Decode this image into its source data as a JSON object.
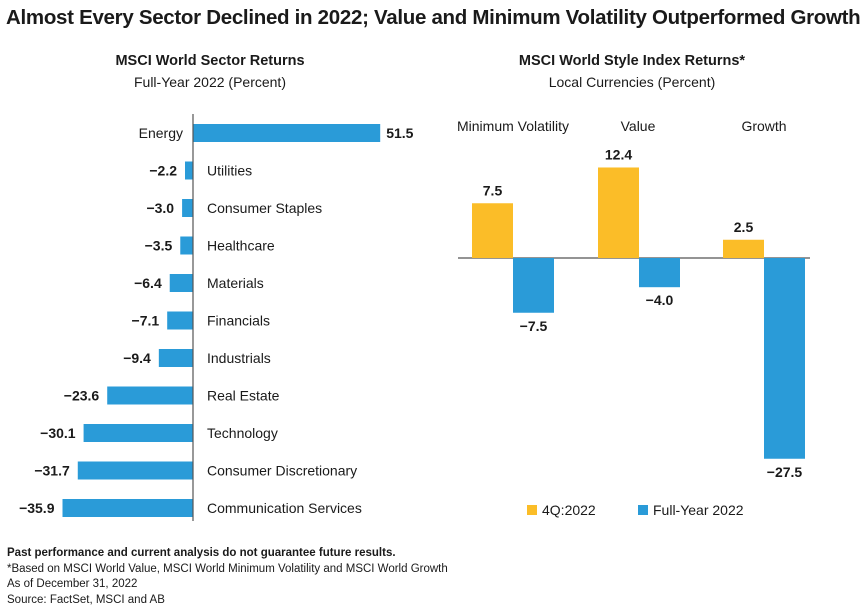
{
  "title": "Almost Every Sector Declined in 2022; Value and Minimum Volatility Outperformed Growth",
  "colors": {
    "blue": "#2a9bd8",
    "gold": "#fbbd28",
    "axis": "#555555"
  },
  "chart_data": [
    {
      "type": "bar",
      "orientation": "horizontal",
      "title": "MSCI World Sector Returns",
      "subtitle": "Full-Year 2022 (Percent)",
      "categories": [
        "Energy",
        "Utilities",
        "Consumer Staples",
        "Healthcare",
        "Materials",
        "Financials",
        "Industrials",
        "Real Estate",
        "Technology",
        "Consumer Discretionary",
        "Communication Services"
      ],
      "values": [
        51.5,
        -2.2,
        -3.0,
        -3.5,
        -6.4,
        -7.1,
        -9.4,
        -23.6,
        -30.1,
        -31.7,
        -35.9
      ],
      "value_labels": [
        "51.5",
        "−2.2",
        "−3.0",
        "−3.5",
        "−6.4",
        "−7.1",
        "−9.4",
        "−23.6",
        "−30.1",
        "−31.7",
        "−35.9"
      ],
      "color": "#2a9bd8",
      "xlim": [
        -38,
        56
      ]
    },
    {
      "type": "bar",
      "title": "MSCI World Style Index Returns*",
      "subtitle": "Local Currencies (Percent)",
      "categories": [
        "Minimum Volatility",
        "Value",
        "Growth"
      ],
      "series": [
        {
          "name": "4Q:2022",
          "color": "#fbbd28",
          "values": [
            7.5,
            12.4,
            2.5
          ],
          "labels": [
            "7.5",
            "12.4",
            "2.5"
          ]
        },
        {
          "name": "Full-Year 2022",
          "color": "#2a9bd8",
          "values": [
            -7.5,
            -4.0,
            -27.5
          ],
          "labels": [
            "−7.5",
            "−4.0",
            "−27.5"
          ]
        }
      ],
      "ylim": [
        -28,
        13
      ],
      "legend": "bottom"
    }
  ],
  "footer": {
    "disclaimer": "Past performance and current analysis do not guarantee future results.",
    "note": "*Based on MSCI World Value, MSCI World Minimum Volatility and MSCI World Growth",
    "asof": "As of December 31, 2022",
    "source": "Source: FactSet, MSCI and AB"
  }
}
